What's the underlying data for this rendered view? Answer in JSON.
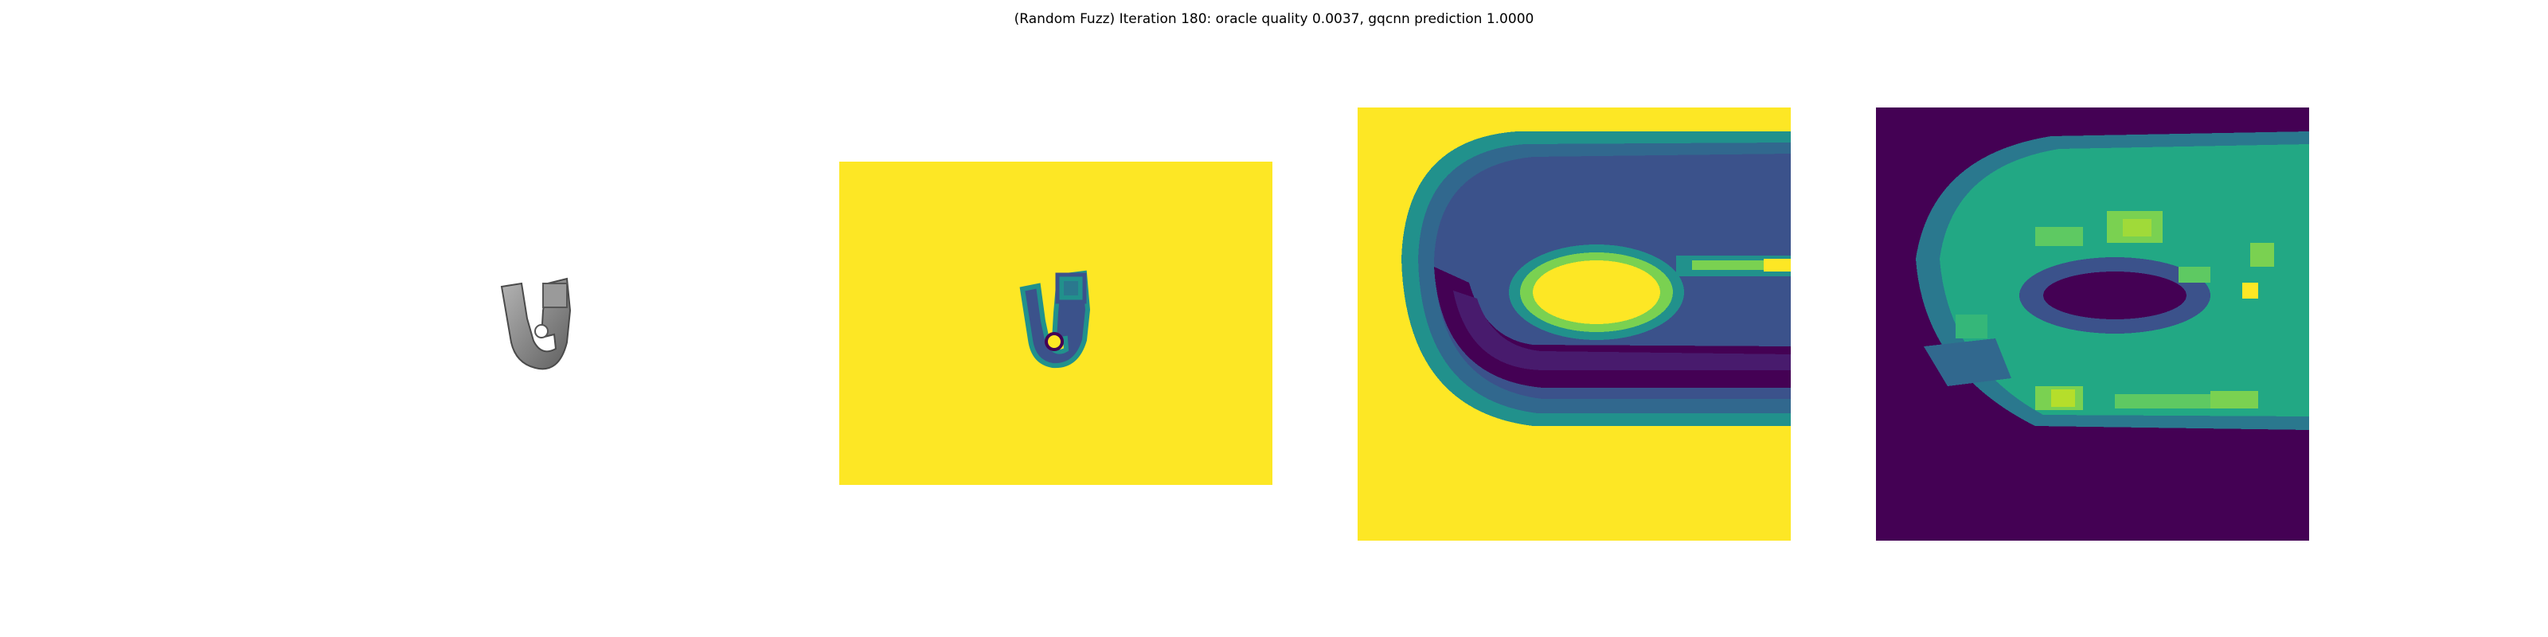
{
  "figure": {
    "title": "(Random Fuzz) Iteration 180: oracle quality 0.0037, gqcnn prediction 1.0000"
  },
  "colors": {
    "viridis_yellow": "#fde725",
    "viridis_purple": "#440154",
    "viridis_dark_blue": "#3b528b",
    "viridis_teal": "#21918c",
    "viridis_green": "#5ec962",
    "object_gray": "#8a8a8a"
  },
  "panels": [
    {
      "name": "rendered-object",
      "colormap": "gray"
    },
    {
      "name": "depth-image",
      "colormap": "viridis"
    },
    {
      "name": "depth-crop",
      "colormap": "viridis"
    },
    {
      "name": "gradient-map",
      "colormap": "viridis"
    }
  ]
}
